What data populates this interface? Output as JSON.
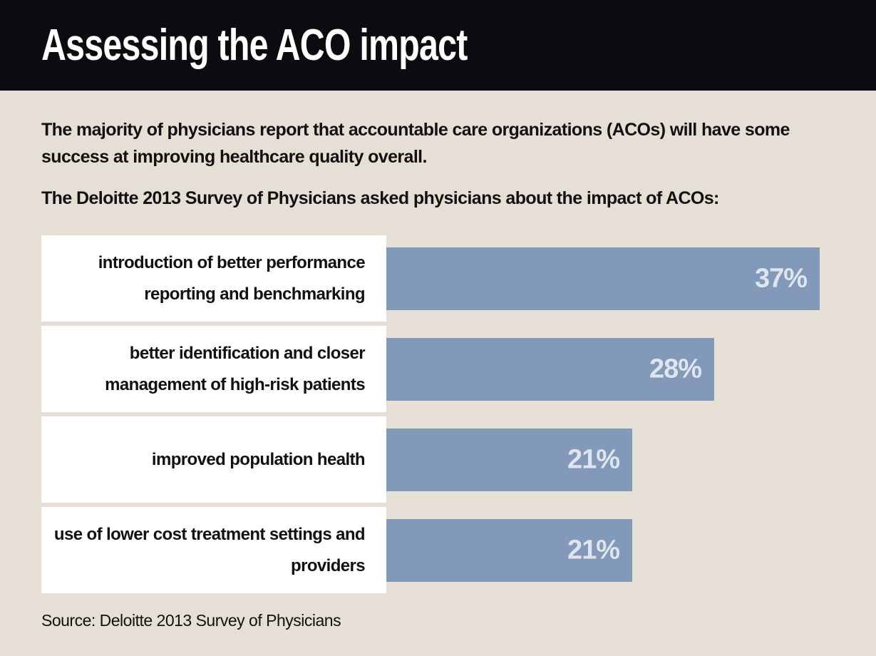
{
  "chart_data": {
    "type": "bar",
    "orientation": "horizontal",
    "title": "Assessing the ACO impact",
    "subtitle": "The majority of physicians report that accountable care organizations (ACOs) will have some success at improving healthcare quality overall.",
    "intro": "The Deloitte 2013 Survey of Physicians asked physicians about the impact of ACOs:",
    "categories": [
      "introduction of better performance reporting and benchmarking",
      "better identification and closer management of high-risk patients",
      "improved population health",
      "use of lower cost treatment settings and providers"
    ],
    "values": [
      37,
      28,
      21,
      21
    ],
    "value_labels": [
      "37%",
      "28%",
      "21%",
      "21%"
    ],
    "color": "#8299b9",
    "source": "Source: Deloitte 2013 Survey of Physicians"
  }
}
